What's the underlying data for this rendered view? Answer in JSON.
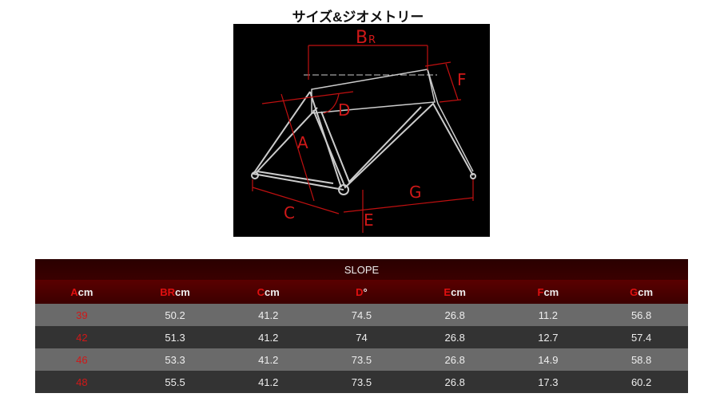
{
  "title": "サイズ&ジオメトリー",
  "diagram": {
    "labels": {
      "A": "A",
      "B": "B",
      "R": "R",
      "C": "C",
      "D": "D",
      "E": "E",
      "F": "F",
      "G": "G"
    }
  },
  "table": {
    "title": "SLOPE",
    "headers": [
      {
        "key": "A",
        "unit": "cm"
      },
      {
        "key": "BR",
        "unit": "cm"
      },
      {
        "key": "C",
        "unit": "cm"
      },
      {
        "key": "D",
        "unit": "°"
      },
      {
        "key": "E",
        "unit": "cm"
      },
      {
        "key": "F",
        "unit": "cm"
      },
      {
        "key": "G",
        "unit": "cm"
      }
    ],
    "rows": [
      [
        "39",
        "50.2",
        "41.2",
        "74.5",
        "26.8",
        "11.2",
        "56.8"
      ],
      [
        "42",
        "51.3",
        "41.2",
        "74",
        "26.8",
        "12.7",
        "57.4"
      ],
      [
        "46",
        "53.3",
        "41.2",
        "73.5",
        "26.8",
        "14.9",
        "58.8"
      ],
      [
        "48",
        "55.5",
        "41.2",
        "73.5",
        "26.8",
        "17.3",
        "60.2"
      ]
    ]
  },
  "colors": {
    "accent": "#d01818",
    "header_bg": "#4a0000"
  }
}
